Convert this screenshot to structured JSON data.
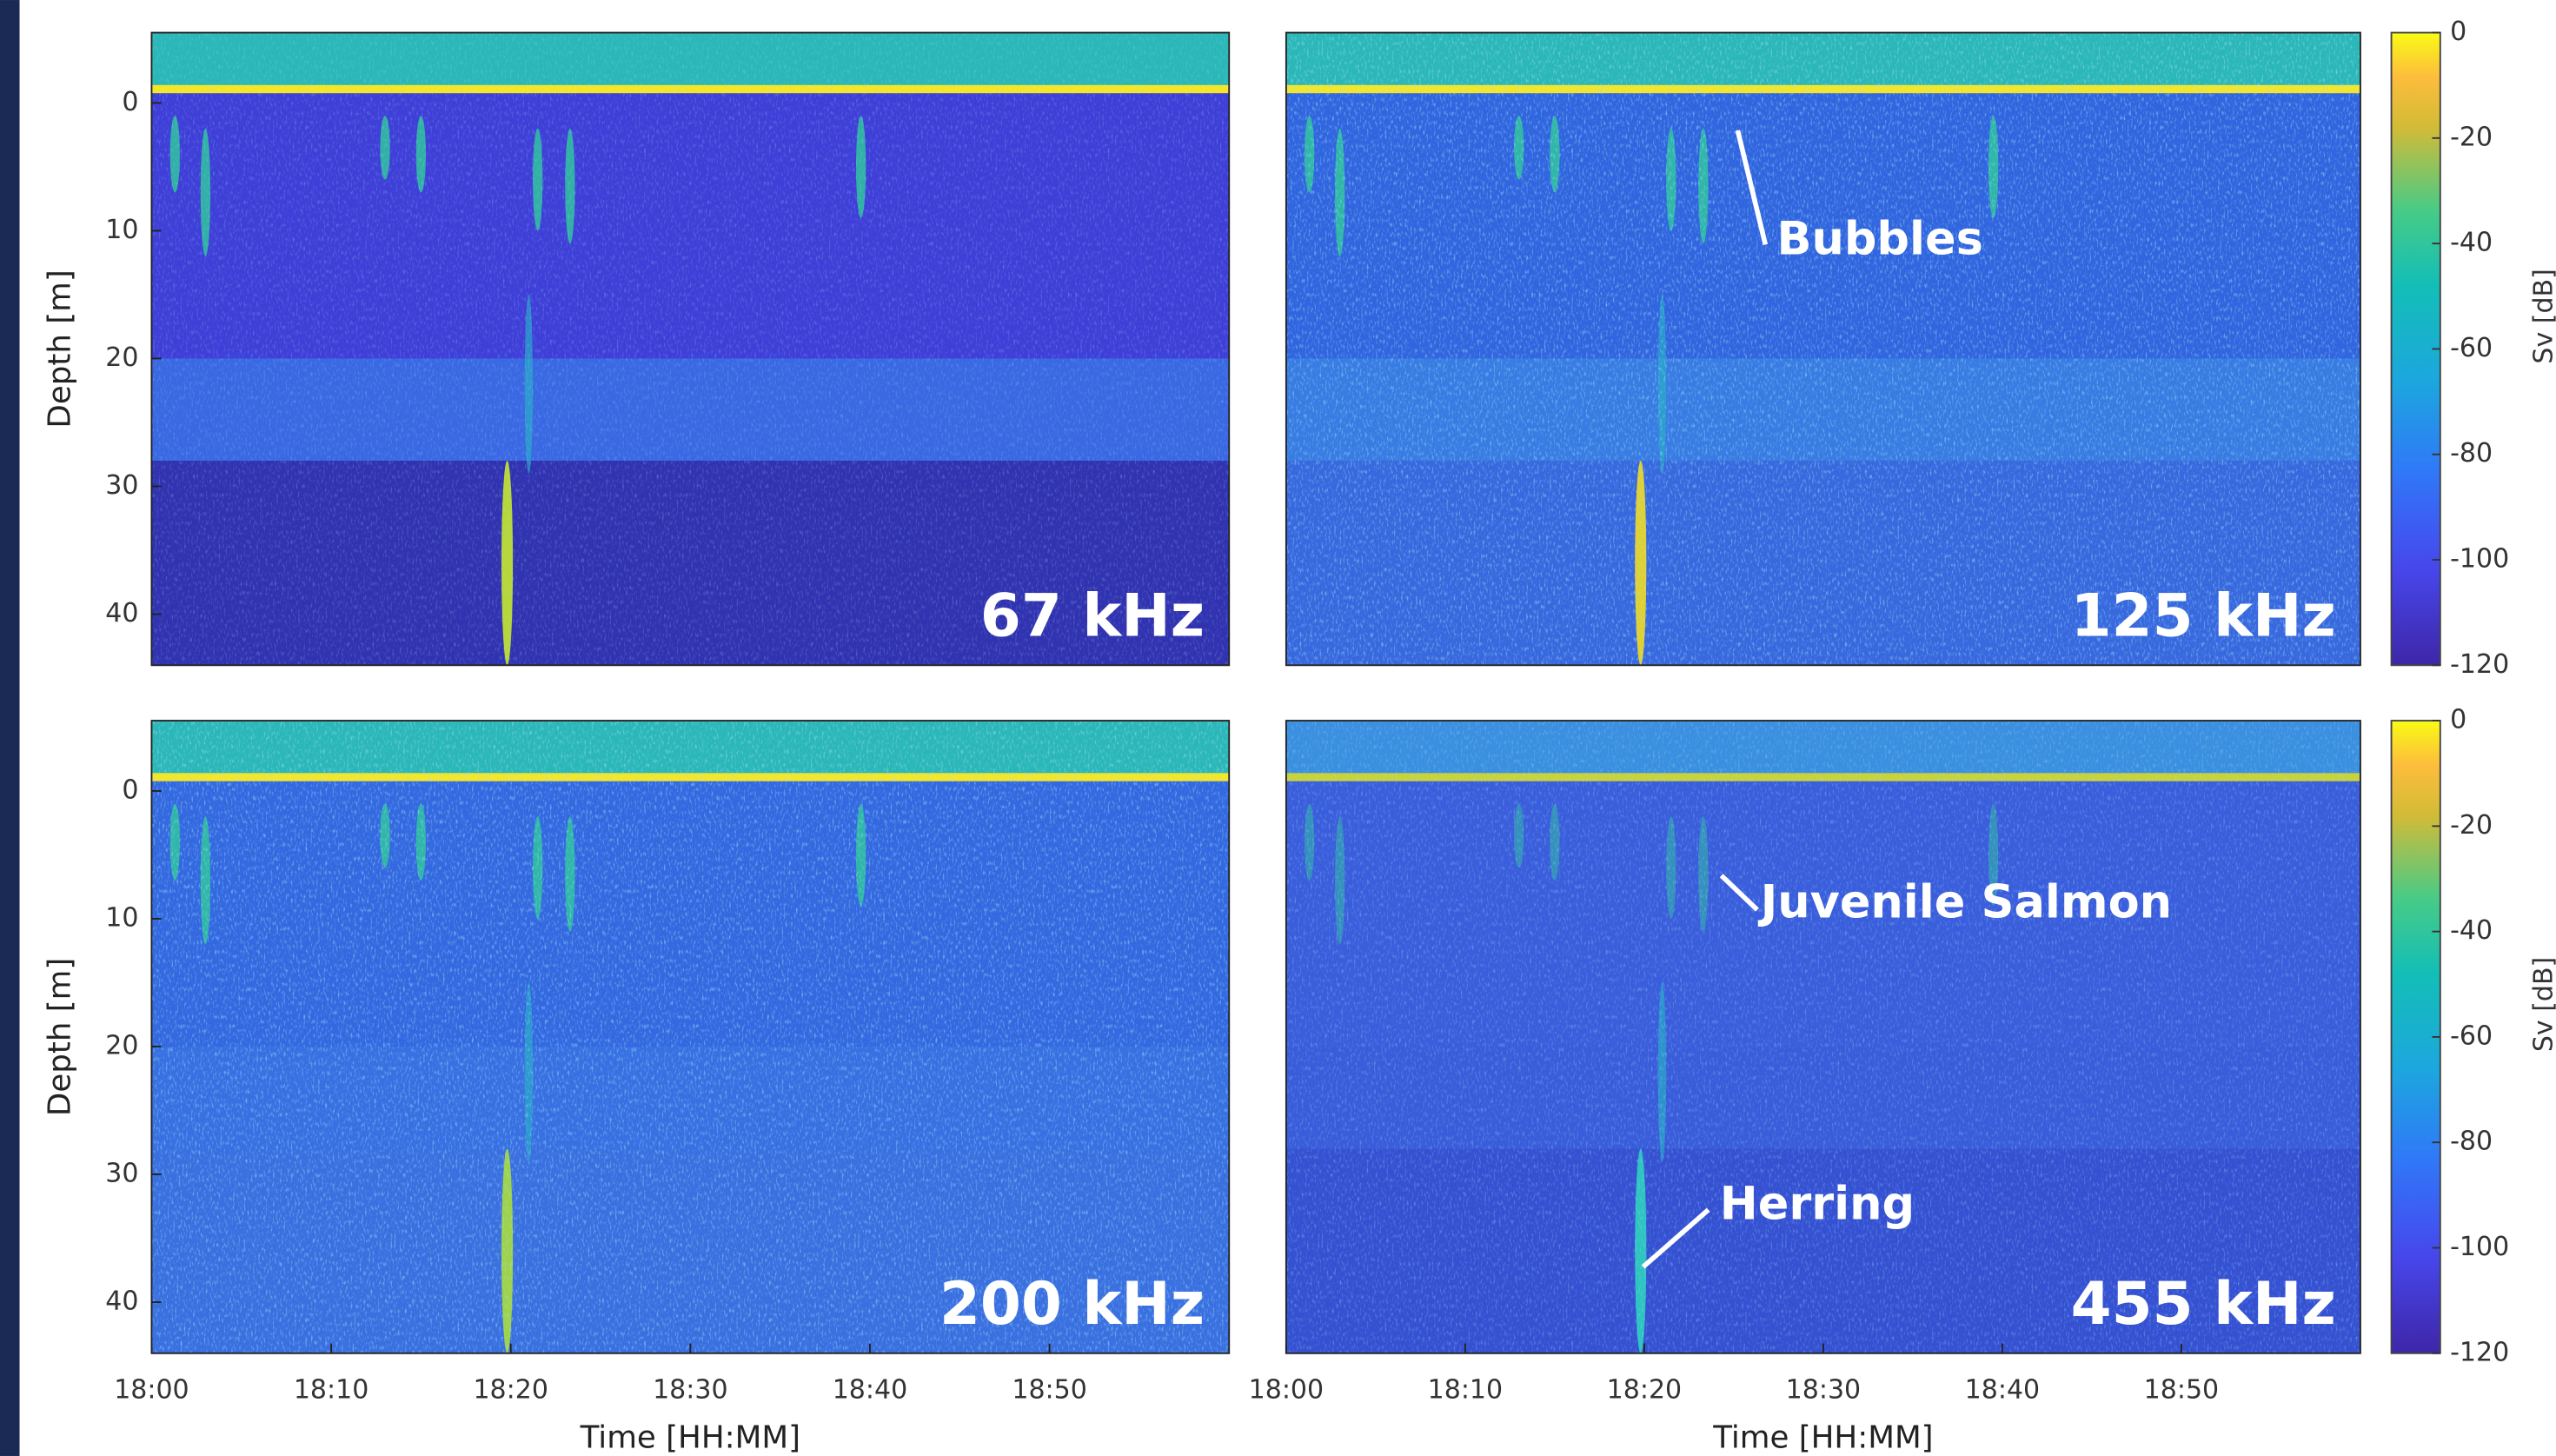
{
  "chart_data": [
    {
      "type": "echogram",
      "title": "67 kHz",
      "ylabel": "Depth [m]",
      "ylim": [
        44,
        -5.5
      ],
      "yticks": [
        0,
        10,
        20,
        30,
        40
      ],
      "xlim": [
        0,
        60
      ]
    },
    {
      "type": "echogram",
      "title": "125 kHz",
      "ylim": [
        44,
        -5.5
      ],
      "xlim": [
        0,
        60
      ],
      "annotations": [
        "Bubbles"
      ],
      "colorbar": {
        "label": "Sv [dB]",
        "lim": [
          -120,
          0
        ],
        "ticks": [
          0,
          -20,
          -40,
          -60,
          -80,
          -100,
          -120
        ]
      }
    },
    {
      "type": "echogram",
      "title": "200 kHz",
      "ylabel": "Depth [m]",
      "xlabel": "Time [HH:MM]",
      "ylim": [
        44,
        -5.5
      ],
      "yticks": [
        0,
        10,
        20,
        30,
        40
      ],
      "xlim": [
        0,
        60
      ],
      "xticks": [
        {
          "value": 0,
          "label": "18:00"
        },
        {
          "value": 10,
          "label": "18:10"
        },
        {
          "value": 20,
          "label": "18:20"
        },
        {
          "value": 30,
          "label": "18:30"
        },
        {
          "value": 40,
          "label": "18:40"
        },
        {
          "value": 50,
          "label": "18:50"
        }
      ]
    },
    {
      "type": "echogram",
      "title": "455 kHz",
      "xlabel": "Time [HH:MM]",
      "ylim": [
        44,
        -5.5
      ],
      "xlim": [
        0,
        60
      ],
      "xticks": [
        {
          "value": 0,
          "label": "18:00"
        },
        {
          "value": 10,
          "label": "18:10"
        },
        {
          "value": 20,
          "label": "18:20"
        },
        {
          "value": 30,
          "label": "18:30"
        },
        {
          "value": 40,
          "label": "18:40"
        },
        {
          "value": 50,
          "label": "18:50"
        }
      ],
      "annotations": [
        "Juvenile Salmon",
        "Herring"
      ],
      "colorbar": {
        "label": "Sv [dB]",
        "lim": [
          -120,
          0
        ],
        "ticks": [
          0,
          -20,
          -40,
          -60,
          -80,
          -100,
          -120
        ]
      }
    }
  ]
}
